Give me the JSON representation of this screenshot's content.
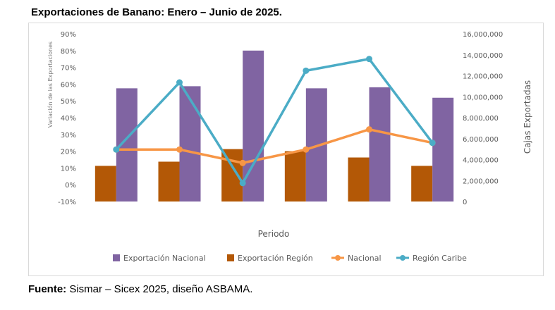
{
  "title": "Exportaciones de Banano: Enero – Junio de 2025.",
  "source": {
    "label": "Fuente:",
    "text": " Sismar – Sicex 2025, diseño ASBAMA."
  },
  "chart_data": {
    "type": "bar",
    "categories": [
      "",
      "",
      "",
      "",
      "",
      ""
    ],
    "xlabel": "Periodo",
    "ylabel_left": "Variación de las Exportaciones",
    "ylabel_right": "Cajas Exportadas",
    "ylim_left": [
      -10,
      90
    ],
    "yticks_left": [
      "90%",
      "80%",
      "70%",
      "60%",
      "50%",
      "40%",
      "30%",
      "20%",
      "10%",
      "0%",
      "-10%"
    ],
    "ylim_right": [
      0,
      16000000
    ],
    "yticks_right": [
      "16,000,000",
      "14,000,000",
      "12,000,000",
      "10,000,000",
      "8,000,000",
      "6,000,000",
      "4,000,000",
      "2,000,000",
      "0"
    ],
    "grid": false,
    "legend_position": "bottom",
    "series": [
      {
        "name": "Exportación Nacional",
        "kind": "bar",
        "axis": "right",
        "color": "#8064a2",
        "values": [
          10800000,
          11000000,
          14400000,
          10800000,
          10900000,
          9900000
        ]
      },
      {
        "name": "Exportación Región",
        "kind": "bar",
        "axis": "right",
        "color": "#b35806",
        "values": [
          3400000,
          3800000,
          5000000,
          4800000,
          4200000,
          3400000
        ]
      },
      {
        "name": "Nacional",
        "kind": "line",
        "axis": "left",
        "color": "#f79646",
        "values": [
          21,
          21,
          13,
          21,
          33,
          25
        ]
      },
      {
        "name": "Región Caribe",
        "kind": "line",
        "axis": "left",
        "color": "#4bacc6",
        "values": [
          21,
          61,
          1,
          68,
          75,
          25
        ]
      }
    ]
  }
}
